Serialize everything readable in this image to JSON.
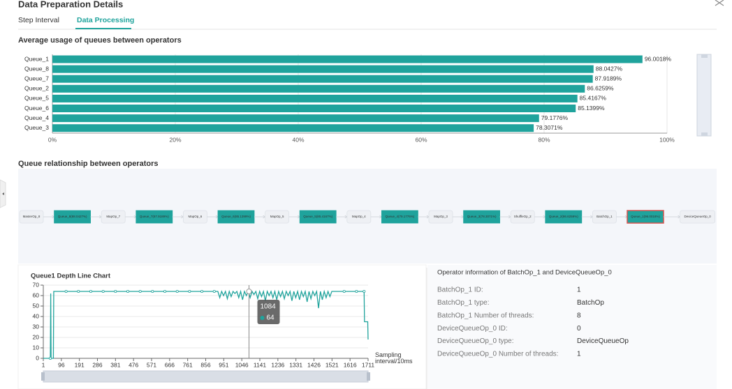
{
  "header": {
    "title": "Data Preparation Details",
    "tabs": [
      "Step Interval",
      "Data Processing"
    ]
  },
  "chart_data": [
    {
      "type": "bar",
      "orientation": "horizontal",
      "title": "Average usage of queues between operators",
      "categories": [
        "Queue_1",
        "Queue_8",
        "Queue_7",
        "Queue_2",
        "Queue_5",
        "Queue_6",
        "Queue_4",
        "Queue_3"
      ],
      "values": [
        96.0018,
        88.0427,
        87.9189,
        86.6259,
        85.4167,
        85.1399,
        79.1776,
        78.3071
      ],
      "value_labels": [
        "96.0018%",
        "88.0427%",
        "87.9189%",
        "86.6259%",
        "85.4167%",
        "85.1399%",
        "79.1776%",
        "78.3071%"
      ],
      "color": "#1fa39c",
      "grid": true,
      "xlim": [
        0,
        100
      ],
      "xticks": [
        {
          "value": 0,
          "label": "0%"
        },
        {
          "value": 20,
          "label": "20%"
        },
        {
          "value": 40,
          "label": "40%"
        },
        {
          "value": 60,
          "label": "60%"
        },
        {
          "value": 80,
          "label": "80%"
        },
        {
          "value": 100,
          "label": "100%"
        }
      ]
    },
    {
      "type": "line",
      "title": "Queue1 Depth Line Chart",
      "x_label": "Sampling interval/10ms",
      "color": "#1fa39c",
      "grid": true,
      "x": [
        1,
        38,
        40,
        42,
        54,
        56,
        121,
        186,
        251,
        316,
        381,
        446,
        511,
        576,
        641,
        706,
        771,
        836,
        901,
        920,
        930,
        940,
        950,
        960,
        970,
        980,
        990,
        1000,
        1010,
        1020,
        1030,
        1040,
        1050,
        1060,
        1070,
        1080,
        1090,
        1100,
        1110,
        1120,
        1130,
        1140,
        1150,
        1160,
        1170,
        1180,
        1190,
        1200,
        1210,
        1220,
        1230,
        1240,
        1250,
        1260,
        1270,
        1280,
        1290,
        1300,
        1310,
        1320,
        1330,
        1340,
        1350,
        1360,
        1370,
        1380,
        1390,
        1400,
        1410,
        1420,
        1430,
        1440,
        1450,
        1460,
        1470,
        1480,
        1490,
        1500,
        1510,
        1520,
        1585,
        1650,
        1690,
        1692,
        1709,
        1711
      ],
      "values": [
        0,
        0,
        62,
        0,
        0,
        64,
        64,
        64,
        64,
        64,
        64,
        64,
        64,
        64,
        64,
        64,
        64,
        64,
        64,
        64,
        58,
        64,
        60,
        64,
        57,
        64,
        59,
        64,
        62,
        64,
        58,
        64,
        56,
        64,
        60,
        64,
        58,
        64,
        61,
        64,
        57,
        64,
        59,
        64,
        55,
        64,
        60,
        64,
        58,
        64,
        56,
        64,
        59,
        64,
        57,
        64,
        60,
        64,
        55,
        64,
        58,
        64,
        56,
        64,
        59,
        64,
        54,
        64,
        57,
        64,
        60,
        64,
        48,
        64,
        56,
        64,
        58,
        64,
        59,
        64,
        64,
        64,
        64,
        35,
        35,
        18
      ],
      "xlim": [
        1,
        1711
      ],
      "xticks": [
        1,
        96,
        191,
        286,
        381,
        476,
        571,
        666,
        761,
        856,
        951,
        1046,
        1141,
        1236,
        1331,
        1426,
        1521,
        1616,
        1711
      ],
      "ylim": [
        0,
        70
      ],
      "yticks": [
        0,
        10,
        20,
        30,
        40,
        50,
        60,
        70
      ],
      "tooltip": {
        "x": 1084,
        "value": 64
      }
    }
  ],
  "relationship": {
    "title": "Queue relationship between operators",
    "selected_node": 15,
    "nodes": [
      "MasterOp_8",
      "Queue_8(88.0427%)",
      "MapOp_7",
      "Queue_7(87.9189%)",
      "MapOp_6",
      "Queue_6(85.1399%)",
      "MapOp_5",
      "Queue_5(85.4167%)",
      "MapOp_4",
      "Queue_4(79.1776%)",
      "MapOp_3",
      "Queue_3(78.3071%)",
      "ShuffleOp_2",
      "Queue_2(86.6259%)",
      "BatchOp_1",
      "Queue_1(96.0018%)",
      "DeviceQueueOp_0"
    ]
  },
  "operator_info": {
    "title": "Operator information of BatchOp_1 and DeviceQueueOp_0",
    "rows": [
      [
        "BatchOp_1 ID:",
        "1"
      ],
      [
        "BatchOp_1 type:",
        "BatchOp"
      ],
      [
        "BatchOp_1 Number of threads:",
        "8"
      ],
      [
        "DeviceQueueOp_0 ID:",
        "0"
      ],
      [
        "DeviceQueueOp_0 type:",
        "DeviceQueueOp"
      ],
      [
        "DeviceQueueOp_0 Number of threads:",
        "1"
      ]
    ]
  }
}
